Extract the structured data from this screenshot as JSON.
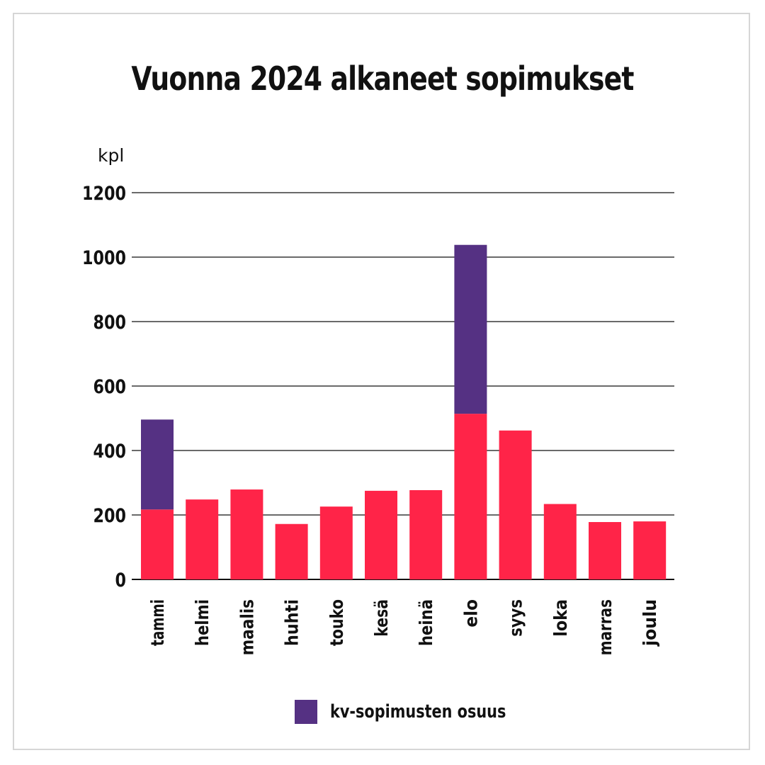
{
  "chart_data": {
    "type": "bar",
    "stacked": true,
    "title": "Vuonna 2024 alkaneet sopimukset",
    "ylabel": "kpl",
    "ylim": [
      0,
      1200
    ],
    "yticks": [
      0,
      200,
      400,
      600,
      800,
      1000,
      1200
    ],
    "grid": true,
    "legend_position": "bottom",
    "categories": [
      "tammi",
      "helmi",
      "maalis",
      "huhti",
      "touko",
      "kesä",
      "heinä",
      "elo",
      "syys",
      "loka",
      "marras",
      "joulu"
    ],
    "series": [
      {
        "color": "#ff2448",
        "values": [
          217,
          248,
          279,
          172,
          226,
          275,
          277,
          514,
          462,
          234,
          178,
          180
        ]
      },
      {
        "name": "kv-sopimusten osuus",
        "color": "#553183",
        "values": [
          279,
          0,
          0,
          0,
          0,
          0,
          0,
          524,
          0,
          0,
          0,
          0
        ]
      }
    ]
  }
}
